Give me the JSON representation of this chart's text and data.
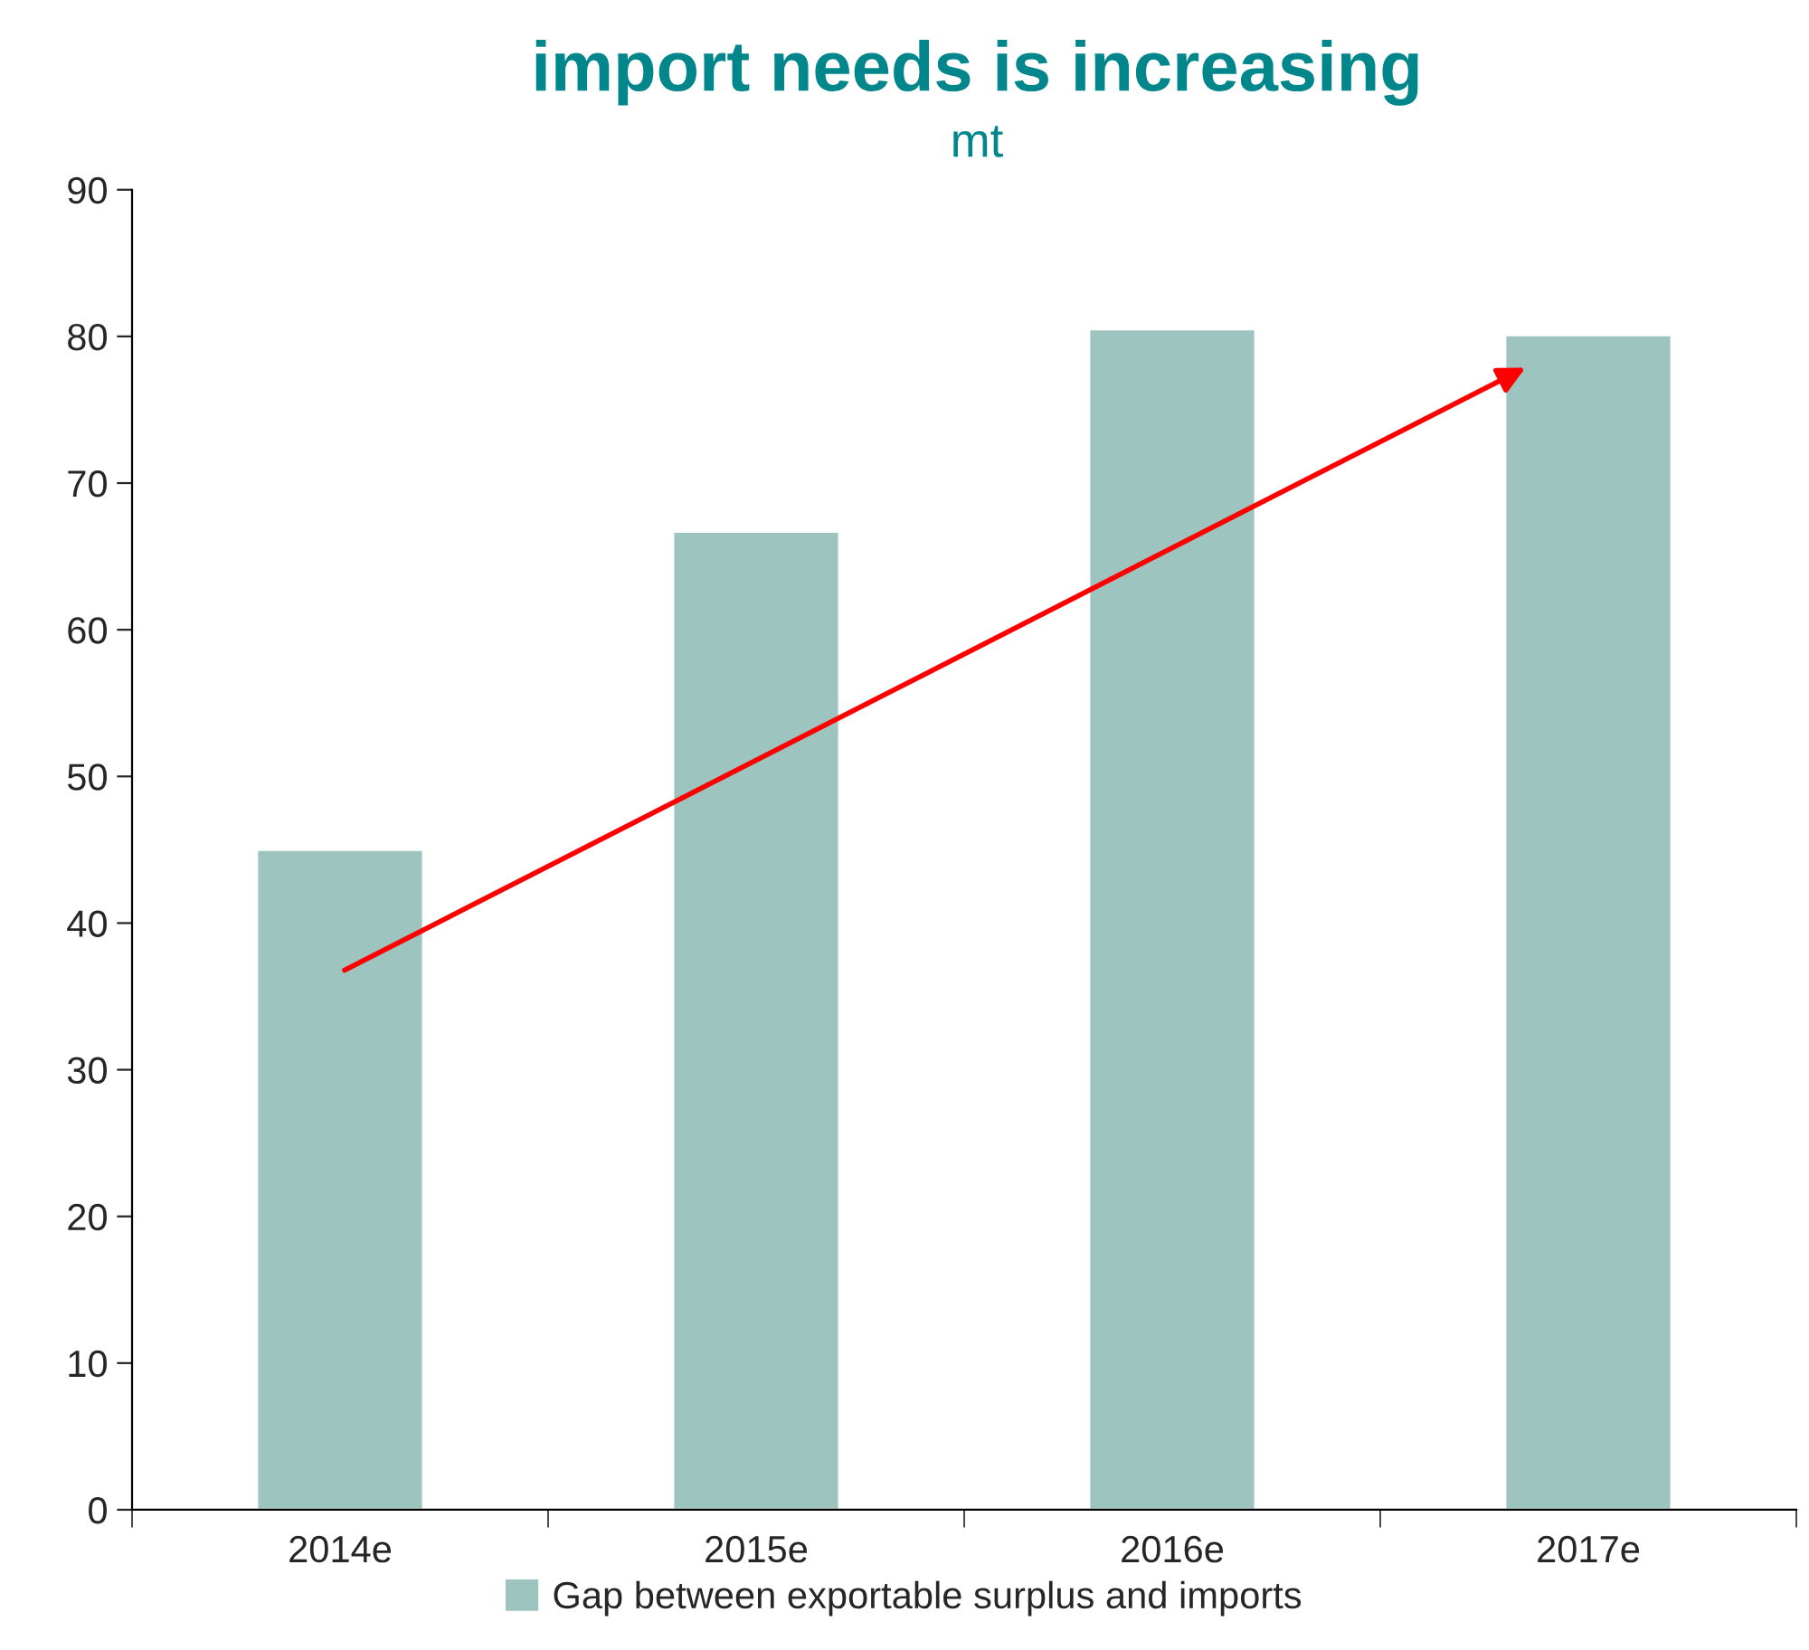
{
  "chart_data": {
    "type": "bar",
    "title": "import needs is increasing",
    "subtitle": "mt",
    "categories": [
      "2014e",
      "2015e",
      "2016e",
      "2017e"
    ],
    "series": [
      {
        "name": "Gap between exportable surplus and imports",
        "color": "#9dc4bf",
        "values": [
          45,
          66.7,
          80.5,
          80.1
        ]
      }
    ],
    "ylim": [
      0,
      90
    ],
    "yticks": [
      0,
      10,
      20,
      30,
      40,
      50,
      60,
      70,
      80,
      90
    ],
    "grid": false,
    "legend": "bottom"
  }
}
